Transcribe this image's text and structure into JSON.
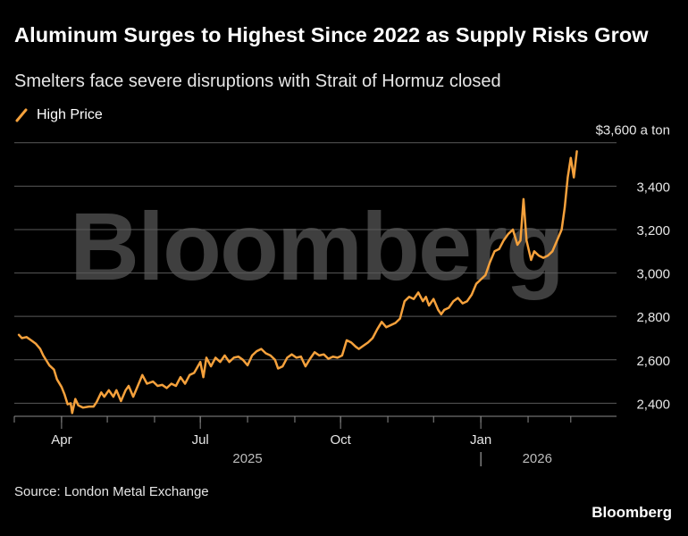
{
  "title": "Aluminum Surges to Highest Since 2022 as Supply Risks Grow",
  "subtitle": "Smelters face severe disruptions with Strait of Hormuz closed",
  "source": "Source: London Metal Exchange",
  "brand": "Bloomberg",
  "watermark": "Bloomberg",
  "colors": {
    "background": "#000000",
    "line": "#f5a13c",
    "grid": "#5a5a5a",
    "text": "#ffffff"
  },
  "chart_data": {
    "type": "line",
    "ylim": [
      2340,
      3640
    ],
    "y_ticks": [
      {
        "value": 2400,
        "label": "2,400"
      },
      {
        "value": 2600,
        "label": "2,600"
      },
      {
        "value": 2800,
        "label": "2,800"
      },
      {
        "value": 3000,
        "label": "3,000"
      },
      {
        "value": 3200,
        "label": "3,200"
      },
      {
        "value": 3400,
        "label": "3,400"
      },
      {
        "value": 3600,
        "label": "$3,600 a ton"
      }
    ],
    "x_range": [
      "2025-03-01",
      "2026-03-31"
    ],
    "x_ticks": [
      {
        "date": "2025-04-01",
        "label": "Apr"
      },
      {
        "date": "2025-07-01",
        "label": "Jul"
      },
      {
        "date": "2025-10-01",
        "label": "Oct"
      },
      {
        "date": "2026-01-01",
        "label": "Jan"
      }
    ],
    "year_labels": [
      {
        "date": "2025-08-01",
        "label": "2025"
      },
      {
        "date": "2026-02-07",
        "label": "2026"
      }
    ],
    "year_divider": "2026-01-01",
    "legend_position": "top-left",
    "series": [
      {
        "name": "High Price",
        "color": "#f5a13c",
        "points": [
          [
            "2025-03-04",
            2715
          ],
          [
            "2025-03-06",
            2700
          ],
          [
            "2025-03-09",
            2705
          ],
          [
            "2025-03-12",
            2690
          ],
          [
            "2025-03-15",
            2675
          ],
          [
            "2025-03-18",
            2650
          ],
          [
            "2025-03-20",
            2620
          ],
          [
            "2025-03-24",
            2575
          ],
          [
            "2025-03-27",
            2555
          ],
          [
            "2025-03-29",
            2510
          ],
          [
            "2025-04-01",
            2475
          ],
          [
            "2025-04-03",
            2440
          ],
          [
            "2025-04-05",
            2395
          ],
          [
            "2025-04-07",
            2400
          ],
          [
            "2025-04-08",
            2355
          ],
          [
            "2025-04-10",
            2420
          ],
          [
            "2025-04-12",
            2390
          ],
          [
            "2025-04-15",
            2380
          ],
          [
            "2025-04-19",
            2385
          ],
          [
            "2025-04-22",
            2385
          ],
          [
            "2025-04-24",
            2405
          ],
          [
            "2025-04-27",
            2450
          ],
          [
            "2025-04-29",
            2430
          ],
          [
            "2025-05-02",
            2460
          ],
          [
            "2025-05-05",
            2430
          ],
          [
            "2025-05-07",
            2460
          ],
          [
            "2025-05-10",
            2410
          ],
          [
            "2025-05-13",
            2460
          ],
          [
            "2025-05-15",
            2480
          ],
          [
            "2025-05-18",
            2430
          ],
          [
            "2025-05-21",
            2480
          ],
          [
            "2025-05-24",
            2530
          ],
          [
            "2025-05-27",
            2490
          ],
          [
            "2025-05-31",
            2500
          ],
          [
            "2025-06-03",
            2480
          ],
          [
            "2025-06-06",
            2485
          ],
          [
            "2025-06-09",
            2470
          ],
          [
            "2025-06-12",
            2490
          ],
          [
            "2025-06-15",
            2480
          ],
          [
            "2025-06-18",
            2520
          ],
          [
            "2025-06-21",
            2490
          ],
          [
            "2025-06-24",
            2530
          ],
          [
            "2025-06-27",
            2540
          ],
          [
            "2025-07-01",
            2590
          ],
          [
            "2025-07-03",
            2520
          ],
          [
            "2025-07-05",
            2610
          ],
          [
            "2025-07-08",
            2570
          ],
          [
            "2025-07-11",
            2610
          ],
          [
            "2025-07-14",
            2590
          ],
          [
            "2025-07-17",
            2620
          ],
          [
            "2025-07-20",
            2590
          ],
          [
            "2025-07-23",
            2610
          ],
          [
            "2025-07-26",
            2615
          ],
          [
            "2025-07-29",
            2600
          ],
          [
            "2025-08-01",
            2575
          ],
          [
            "2025-08-04",
            2620
          ],
          [
            "2025-08-07",
            2640
          ],
          [
            "2025-08-10",
            2650
          ],
          [
            "2025-08-13",
            2630
          ],
          [
            "2025-08-16",
            2620
          ],
          [
            "2025-08-19",
            2600
          ],
          [
            "2025-08-21",
            2560
          ],
          [
            "2025-08-24",
            2570
          ],
          [
            "2025-08-27",
            2610
          ],
          [
            "2025-08-30",
            2625
          ],
          [
            "2025-09-02",
            2610
          ],
          [
            "2025-09-05",
            2615
          ],
          [
            "2025-09-08",
            2570
          ],
          [
            "2025-09-11",
            2605
          ],
          [
            "2025-09-14",
            2635
          ],
          [
            "2025-09-17",
            2620
          ],
          [
            "2025-09-20",
            2625
          ],
          [
            "2025-09-23",
            2605
          ],
          [
            "2025-09-26",
            2615
          ],
          [
            "2025-09-29",
            2610
          ],
          [
            "2025-10-02",
            2620
          ],
          [
            "2025-10-05",
            2690
          ],
          [
            "2025-10-08",
            2680
          ],
          [
            "2025-10-11",
            2660
          ],
          [
            "2025-10-13",
            2650
          ],
          [
            "2025-10-16",
            2665
          ],
          [
            "2025-10-19",
            2680
          ],
          [
            "2025-10-22",
            2700
          ],
          [
            "2025-10-25",
            2740
          ],
          [
            "2025-10-28",
            2775
          ],
          [
            "2025-10-31",
            2750
          ],
          [
            "2025-11-03",
            2760
          ],
          [
            "2025-11-06",
            2770
          ],
          [
            "2025-11-09",
            2790
          ],
          [
            "2025-11-12",
            2870
          ],
          [
            "2025-11-15",
            2890
          ],
          [
            "2025-11-18",
            2880
          ],
          [
            "2025-11-21",
            2910
          ],
          [
            "2025-11-24",
            2870
          ],
          [
            "2025-11-26",
            2890
          ],
          [
            "2025-11-28",
            2850
          ],
          [
            "2025-12-01",
            2880
          ],
          [
            "2025-12-04",
            2830
          ],
          [
            "2025-12-06",
            2810
          ],
          [
            "2025-12-08",
            2830
          ],
          [
            "2025-12-11",
            2840
          ],
          [
            "2025-12-14",
            2870
          ],
          [
            "2025-12-17",
            2885
          ],
          [
            "2025-12-20",
            2860
          ],
          [
            "2025-12-23",
            2870
          ],
          [
            "2025-12-26",
            2900
          ],
          [
            "2025-12-29",
            2950
          ],
          [
            "2026-01-01",
            2970
          ],
          [
            "2026-01-04",
            2990
          ],
          [
            "2026-01-07",
            3050
          ],
          [
            "2026-01-10",
            3100
          ],
          [
            "2026-01-13",
            3110
          ],
          [
            "2026-01-16",
            3150
          ],
          [
            "2026-01-19",
            3180
          ],
          [
            "2026-01-22",
            3200
          ],
          [
            "2026-01-25",
            3130
          ],
          [
            "2026-01-27",
            3150
          ],
          [
            "2026-01-29",
            3340
          ],
          [
            "2026-01-31",
            3150
          ],
          [
            "2026-02-03",
            3060
          ],
          [
            "2026-02-05",
            3100
          ],
          [
            "2026-02-08",
            3080
          ],
          [
            "2026-02-11",
            3070
          ],
          [
            "2026-02-14",
            3080
          ],
          [
            "2026-02-17",
            3100
          ],
          [
            "2026-02-20",
            3150
          ],
          [
            "2026-02-23",
            3200
          ],
          [
            "2026-02-25",
            3300
          ],
          [
            "2026-02-27",
            3440
          ],
          [
            "2026-03-01",
            3530
          ],
          [
            "2026-03-03",
            3440
          ],
          [
            "2026-03-05",
            3560
          ]
        ]
      }
    ]
  }
}
